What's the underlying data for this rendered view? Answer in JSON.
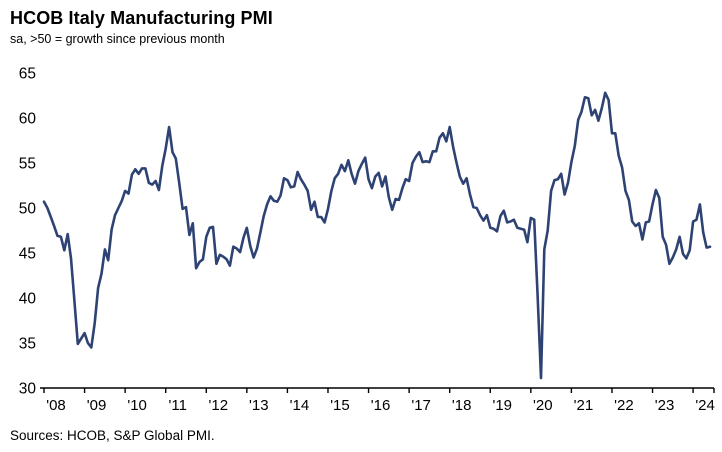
{
  "header": {
    "title": "HCOB Italy Manufacturing PMI",
    "subtitle": "sa, >50 = growth since previous month"
  },
  "footer": {
    "source": "Sources: HCOB, S&P Global PMI."
  },
  "chart_data": {
    "type": "line",
    "title": "HCOB Italy Manufacturing PMI",
    "subtitle": "sa, >50 = growth since previous month",
    "series_name": "Italy Manufacturing PMI (sa)",
    "frequency": "monthly",
    "start": "2008-01",
    "end": "2024-06",
    "line_color": "#2E4374",
    "axis_color": "#000000",
    "ylim": [
      30,
      65
    ],
    "yticks": [
      30,
      35,
      40,
      45,
      50,
      55,
      60,
      65
    ],
    "x_tick_labels": [
      "'08",
      "'09",
      "'10",
      "'11",
      "'12",
      "'13",
      "'14",
      "'15",
      "'16",
      "'17",
      "'18",
      "'19",
      "'20",
      "'21",
      "'22",
      "'23",
      "'24"
    ],
    "grid": false,
    "legend": "none",
    "values": [
      50.7,
      50.0,
      49.0,
      48.0,
      46.9,
      46.8,
      45.3,
      47.1,
      44.4,
      39.7,
      34.9,
      35.5,
      36.1,
      35.0,
      34.5,
      37.2,
      41.1,
      42.7,
      45.4,
      44.2,
      47.6,
      49.2,
      50.0,
      50.8,
      51.9,
      51.6,
      53.7,
      54.3,
      53.8,
      54.4,
      54.4,
      52.8,
      52.6,
      53.0,
      52.0,
      54.7,
      56.6,
      59.0,
      56.2,
      55.5,
      52.8,
      49.9,
      50.1,
      47.0,
      48.3,
      43.3,
      44.0,
      44.3,
      46.8,
      47.8,
      47.9,
      43.8,
      44.8,
      44.6,
      44.3,
      43.6,
      45.7,
      45.5,
      45.1,
      46.7,
      47.8,
      45.8,
      44.5,
      45.5,
      47.3,
      49.1,
      50.4,
      51.3,
      50.8,
      50.7,
      51.4,
      53.3,
      53.1,
      52.3,
      52.4,
      54.0,
      53.2,
      52.6,
      51.9,
      49.8,
      50.7,
      49.0,
      49.0,
      48.4,
      49.9,
      51.9,
      53.3,
      53.8,
      54.8,
      54.1,
      55.3,
      53.8,
      52.7,
      54.1,
      54.9,
      55.6,
      53.2,
      52.2,
      53.5,
      53.9,
      52.4,
      53.5,
      51.2,
      49.8,
      51.0,
      50.9,
      52.2,
      53.2,
      53.0,
      55.0,
      55.7,
      56.2,
      55.1,
      55.2,
      55.1,
      56.3,
      56.3,
      57.8,
      58.3,
      57.4,
      59.0,
      56.8,
      55.1,
      53.5,
      52.7,
      53.3,
      51.5,
      50.1,
      50.0,
      49.2,
      48.6,
      49.2,
      47.8,
      47.7,
      47.4,
      49.1,
      49.7,
      48.4,
      48.5,
      48.7,
      47.8,
      47.7,
      47.6,
      46.2,
      48.9,
      48.7,
      40.3,
      31.1,
      45.4,
      47.5,
      51.9,
      53.1,
      53.2,
      53.8,
      51.5,
      52.8,
      55.1,
      56.9,
      59.8,
      60.7,
      62.3,
      62.2,
      60.3,
      60.9,
      59.7,
      61.1,
      62.8,
      62.0,
      58.3,
      58.3,
      55.8,
      54.5,
      51.9,
      50.9,
      48.5,
      48.0,
      48.3,
      46.5,
      48.4,
      48.5,
      50.4,
      52.0,
      51.1,
      46.8,
      45.9,
      43.8,
      44.5,
      45.4,
      46.8,
      44.9,
      44.4,
      45.3,
      48.5,
      48.7,
      50.4,
      47.3,
      45.6,
      45.7
    ]
  }
}
